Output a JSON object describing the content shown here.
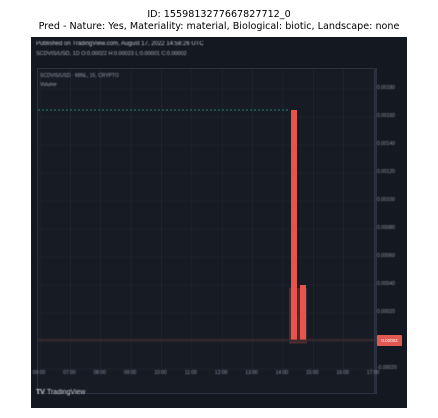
{
  "caption": {
    "id_line": "ID: 1559813277667827712_0",
    "pred_line": "Pred - Nature: Yes, Materiality: material, Biological: biotic, Landscape: none"
  },
  "screenshot": {
    "header_line1": "Published on TradingView.com, August 17, 2022 14:58:26 UTC",
    "header_line2": "SCDVIS/USD, 1D  O:0.00022 H:0.00023 L:0.00001 C:0.00002",
    "legend_line1": "SCDVIS/USD · MINL, 15, CRYPTO",
    "legend_line2": "Volume",
    "y_ticks": [
      "0.00180",
      "0.00160",
      "0.00140",
      "0.00120",
      "0.00100",
      "0.00080",
      "0.00060",
      "0.00040",
      "0.00020",
      "0.00000",
      "-0.00020"
    ],
    "x_ticks": [
      "09:00",
      "07:00",
      "08:00",
      "09:00",
      "10:00",
      "11:00",
      "12:00",
      "13:00",
      "14:00",
      "15:00",
      "16:00",
      "17:00"
    ],
    "price_badge": "0.00002",
    "brand": "TradingView",
    "brand_mark": "TV",
    "colors": {
      "background": "#141820",
      "bear_candle": "#e8544c",
      "dashed_line": "#2aa58e",
      "grid": "#222836"
    }
  },
  "chart_data": {
    "type": "bar",
    "categories": [
      "14:00",
      "14:15"
    ],
    "values": [
      0.00165,
      0.0004
    ],
    "ylim": [
      -0.0002,
      0.0018
    ]
  }
}
